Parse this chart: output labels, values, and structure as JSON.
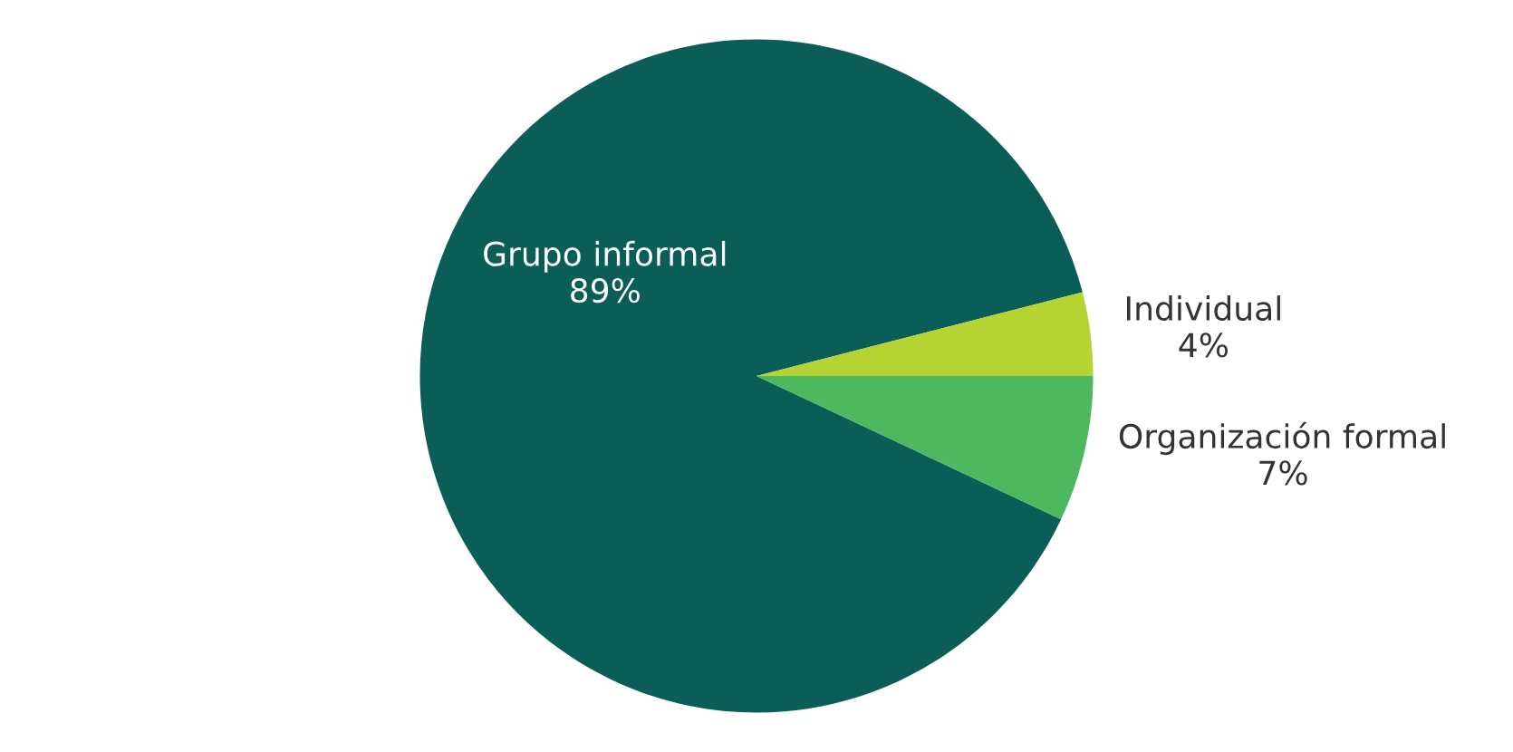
{
  "chart_data": {
    "type": "pie",
    "categories": [
      "Grupo informal",
      "Individual",
      "Organización formal"
    ],
    "values": [
      89,
      4,
      7
    ],
    "value_labels": [
      "89%",
      "4%",
      "7%"
    ],
    "colors": [
      "#0b5e57",
      "#b6d334",
      "#4db85e"
    ]
  }
}
